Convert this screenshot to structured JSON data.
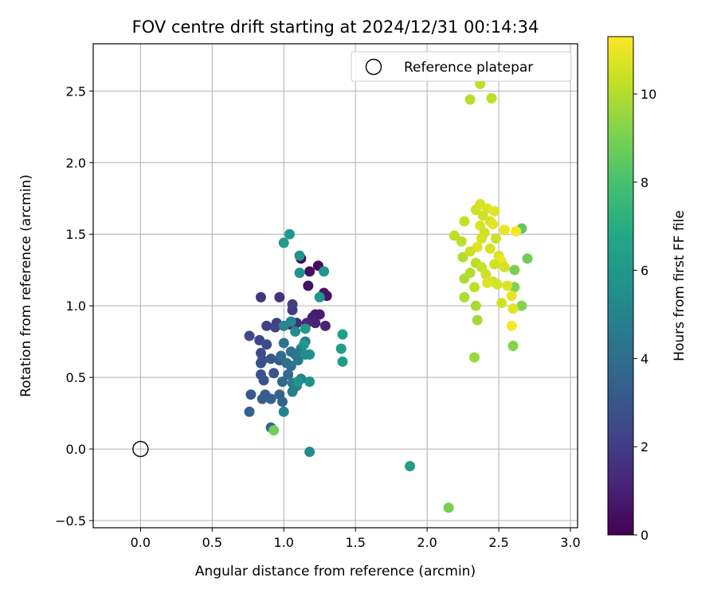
{
  "chart_data": {
    "type": "scatter",
    "title": "FOV centre drift starting at 2024/12/31 00:14:34",
    "xlabel": "Angular distance from reference (arcmin)",
    "ylabel": "Rotation from reference (arcmin)",
    "xlim": [
      -0.33,
      3.05
    ],
    "ylim": [
      -0.55,
      2.83
    ],
    "xticks": [
      "0.0",
      "0.5",
      "1.0",
      "1.5",
      "2.0",
      "2.5",
      "3.0"
    ],
    "xtick_values": [
      0,
      0.5,
      1.0,
      1.5,
      2.0,
      2.5,
      3.0
    ],
    "yticks": [
      "−0.5",
      "0.0",
      "0.5",
      "1.0",
      "1.5",
      "2.0",
      "2.5"
    ],
    "ytick_values": [
      -0.5,
      0,
      0.5,
      1.0,
      1.5,
      2.0,
      2.5
    ],
    "grid": true,
    "legend": {
      "position": "top-right",
      "label": "Reference platepar"
    },
    "reference_point": {
      "x": 0.0,
      "y": 0.0
    },
    "colorbar": {
      "label": "Hours from first FF file",
      "range": [
        0,
        11.3
      ],
      "ticks": [
        "0",
        "2",
        "4",
        "6",
        "8",
        "10"
      ],
      "tick_values": [
        0,
        2,
        4,
        6,
        8,
        10
      ],
      "colormap": "viridis"
    },
    "series": [
      {
        "points": [
          {
            "x": 1.12,
            "y": 1.33,
            "c": 0.2
          },
          {
            "x": 1.24,
            "y": 1.28,
            "c": 0.3
          },
          {
            "x": 1.18,
            "y": 1.24,
            "c": 0.4
          },
          {
            "x": 1.17,
            "y": 1.14,
            "c": 0.5
          },
          {
            "x": 1.28,
            "y": 1.09,
            "c": 0.6
          },
          {
            "x": 1.3,
            "y": 1.07,
            "c": 0.7
          },
          {
            "x": 1.22,
            "y": 0.94,
            "c": 0.8
          },
          {
            "x": 1.25,
            "y": 0.94,
            "c": 0.9
          },
          {
            "x": 1.2,
            "y": 0.92,
            "c": 1.0
          },
          {
            "x": 1.22,
            "y": 0.88,
            "c": 1.1
          },
          {
            "x": 1.29,
            "y": 0.86,
            "c": 1.2
          },
          {
            "x": 1.16,
            "y": 0.88,
            "c": 1.3
          },
          {
            "x": 1.09,
            "y": 0.88,
            "c": 1.4
          },
          {
            "x": 1.04,
            "y": 0.87,
            "c": 1.5
          },
          {
            "x": 0.97,
            "y": 1.06,
            "c": 1.6
          },
          {
            "x": 0.84,
            "y": 1.06,
            "c": 1.8
          },
          {
            "x": 1.06,
            "y": 0.97,
            "c": 1.9
          },
          {
            "x": 1.06,
            "y": 1.01,
            "c": 2.0
          },
          {
            "x": 0.95,
            "y": 0.88,
            "c": 2.1
          },
          {
            "x": 0.88,
            "y": 0.86,
            "c": 2.2
          },
          {
            "x": 0.94,
            "y": 0.85,
            "c": 2.3
          },
          {
            "x": 0.83,
            "y": 0.76,
            "c": 2.4
          },
          {
            "x": 0.76,
            "y": 0.79,
            "c": 2.5
          },
          {
            "x": 0.88,
            "y": 0.73,
            "c": 2.6
          },
          {
            "x": 0.84,
            "y": 0.67,
            "c": 2.6
          },
          {
            "x": 0.85,
            "y": 0.62,
            "c": 2.7
          },
          {
            "x": 0.84,
            "y": 0.6,
            "c": 2.8
          },
          {
            "x": 0.84,
            "y": 0.52,
            "c": 2.8
          },
          {
            "x": 0.86,
            "y": 0.48,
            "c": 2.9
          },
          {
            "x": 0.93,
            "y": 0.53,
            "c": 3.0
          },
          {
            "x": 0.97,
            "y": 0.62,
            "c": 3.0
          },
          {
            "x": 0.91,
            "y": 0.63,
            "c": 3.1
          },
          {
            "x": 0.77,
            "y": 0.38,
            "c": 3.2
          },
          {
            "x": 0.87,
            "y": 0.38,
            "c": 3.3
          },
          {
            "x": 0.85,
            "y": 0.35,
            "c": 3.3
          },
          {
            "x": 0.91,
            "y": 0.35,
            "c": 3.4
          },
          {
            "x": 0.76,
            "y": 0.26,
            "c": 3.5
          },
          {
            "x": 0.97,
            "y": 0.38,
            "c": 3.6
          },
          {
            "x": 0.99,
            "y": 0.33,
            "c": 3.7
          },
          {
            "x": 0.91,
            "y": 0.15,
            "c": 3.7
          },
          {
            "x": 0.99,
            "y": 0.47,
            "c": 3.8
          },
          {
            "x": 1.03,
            "y": 0.52,
            "c": 3.9
          },
          {
            "x": 1.05,
            "y": 0.58,
            "c": 4.0
          },
          {
            "x": 1.02,
            "y": 0.6,
            "c": 4.1
          },
          {
            "x": 0.98,
            "y": 0.65,
            "c": 4.1
          },
          {
            "x": 1.05,
            "y": 0.68,
            "c": 4.2
          },
          {
            "x": 1.0,
            "y": 0.74,
            "c": 4.3
          },
          {
            "x": 1.08,
            "y": 0.66,
            "c": 4.4
          },
          {
            "x": 1.1,
            "y": 0.62,
            "c": 4.5
          },
          {
            "x": 1.12,
            "y": 0.7,
            "c": 4.5
          },
          {
            "x": 1.15,
            "y": 0.75,
            "c": 4.6
          },
          {
            "x": 1.06,
            "y": 0.46,
            "c": 4.7
          },
          {
            "x": 1.06,
            "y": 0.4,
            "c": 4.8
          },
          {
            "x": 1.09,
            "y": 0.44,
            "c": 4.9
          },
          {
            "x": 1.12,
            "y": 0.49,
            "c": 5.0
          },
          {
            "x": 1.0,
            "y": 0.26,
            "c": 5.1
          },
          {
            "x": 1.0,
            "y": 0.86,
            "c": 5.2
          },
          {
            "x": 1.05,
            "y": 0.89,
            "c": 5.3
          },
          {
            "x": 1.08,
            "y": 0.82,
            "c": 5.4
          },
          {
            "x": 1.15,
            "y": 0.66,
            "c": 5.5
          },
          {
            "x": 1.18,
            "y": 0.66,
            "c": 5.6
          },
          {
            "x": 1.18,
            "y": 0.47,
            "c": 5.7
          },
          {
            "x": 1.1,
            "y": 0.47,
            "c": 5.8
          },
          {
            "x": 1.14,
            "y": 0.73,
            "c": 5.9
          },
          {
            "x": 1.11,
            "y": 1.23,
            "c": 5.7
          },
          {
            "x": 1.11,
            "y": 1.35,
            "c": 5.8
          },
          {
            "x": 1.25,
            "y": 1.06,
            "c": 5.9
          },
          {
            "x": 1.28,
            "y": 1.24,
            "c": 6.0
          },
          {
            "x": 1.04,
            "y": 1.5,
            "c": 6.0
          },
          {
            "x": 1.0,
            "y": 1.44,
            "c": 6.1
          },
          {
            "x": 1.18,
            "y": -0.02,
            "c": 5.4
          },
          {
            "x": 1.15,
            "y": 0.84,
            "c": 6.1
          },
          {
            "x": 1.4,
            "y": 0.7,
            "c": 6.2
          },
          {
            "x": 1.41,
            "y": 0.61,
            "c": 6.3
          },
          {
            "x": 1.41,
            "y": 0.8,
            "c": 6.4
          },
          {
            "x": 1.88,
            "y": -0.12,
            "c": 6.3
          },
          {
            "x": 0.93,
            "y": 0.13,
            "c": 8.8
          },
          {
            "x": 2.15,
            "y": -0.41,
            "c": 9.0
          },
          {
            "x": 2.66,
            "y": 1.54,
            "c": 8.5
          },
          {
            "x": 2.7,
            "y": 1.33,
            "c": 8.8
          },
          {
            "x": 2.61,
            "y": 1.25,
            "c": 9.0
          },
          {
            "x": 2.61,
            "y": 1.13,
            "c": 9.1
          },
          {
            "x": 2.66,
            "y": 1.0,
            "c": 9.2
          },
          {
            "x": 2.6,
            "y": 0.72,
            "c": 9.2
          },
          {
            "x": 2.33,
            "y": 0.64,
            "c": 9.6
          },
          {
            "x": 2.35,
            "y": 0.9,
            "c": 9.7
          },
          {
            "x": 2.34,
            "y": 1.0,
            "c": 9.8
          },
          {
            "x": 2.26,
            "y": 1.06,
            "c": 9.9
          },
          {
            "x": 2.26,
            "y": 1.19,
            "c": 9.9
          },
          {
            "x": 2.3,
            "y": 1.23,
            "c": 10.0
          },
          {
            "x": 2.34,
            "y": 1.3,
            "c": 10.1
          },
          {
            "x": 2.25,
            "y": 1.34,
            "c": 10.0
          },
          {
            "x": 2.24,
            "y": 1.45,
            "c": 10.1
          },
          {
            "x": 2.19,
            "y": 1.49,
            "c": 10.2
          },
          {
            "x": 2.26,
            "y": 1.59,
            "c": 10.3
          },
          {
            "x": 2.3,
            "y": 2.44,
            "c": 10.1
          },
          {
            "x": 2.37,
            "y": 2.55,
            "c": 10.2
          },
          {
            "x": 2.45,
            "y": 2.45,
            "c": 10.1
          },
          {
            "x": 2.34,
            "y": 1.67,
            "c": 10.4
          },
          {
            "x": 2.37,
            "y": 1.71,
            "c": 10.6
          },
          {
            "x": 2.42,
            "y": 1.68,
            "c": 10.7
          },
          {
            "x": 2.47,
            "y": 1.66,
            "c": 10.8
          },
          {
            "x": 2.39,
            "y": 1.63,
            "c": 10.5
          },
          {
            "x": 2.44,
            "y": 1.59,
            "c": 10.6
          },
          {
            "x": 2.37,
            "y": 1.56,
            "c": 10.7
          },
          {
            "x": 2.46,
            "y": 1.57,
            "c": 10.9
          },
          {
            "x": 2.54,
            "y": 1.53,
            "c": 11.0
          },
          {
            "x": 2.48,
            "y": 1.47,
            "c": 10.4
          },
          {
            "x": 2.4,
            "y": 1.51,
            "c": 10.5
          },
          {
            "x": 2.38,
            "y": 1.47,
            "c": 10.6
          },
          {
            "x": 2.35,
            "y": 1.41,
            "c": 10.8
          },
          {
            "x": 2.3,
            "y": 1.38,
            "c": 10.4
          },
          {
            "x": 2.44,
            "y": 1.4,
            "c": 10.6
          },
          {
            "x": 2.5,
            "y": 1.35,
            "c": 10.7
          },
          {
            "x": 2.52,
            "y": 1.31,
            "c": 11.0
          },
          {
            "x": 2.47,
            "y": 1.29,
            "c": 10.5
          },
          {
            "x": 2.38,
            "y": 1.27,
            "c": 10.3
          },
          {
            "x": 2.41,
            "y": 1.22,
            "c": 10.4
          },
          {
            "x": 2.46,
            "y": 1.17,
            "c": 10.5
          },
          {
            "x": 2.49,
            "y": 1.15,
            "c": 10.6
          },
          {
            "x": 2.42,
            "y": 1.16,
            "c": 10.7
          },
          {
            "x": 2.33,
            "y": 1.13,
            "c": 10.2
          },
          {
            "x": 2.54,
            "y": 1.27,
            "c": 10.6
          },
          {
            "x": 2.56,
            "y": 1.14,
            "c": 10.7
          },
          {
            "x": 2.59,
            "y": 1.07,
            "c": 10.9
          },
          {
            "x": 2.6,
            "y": 0.98,
            "c": 10.8
          },
          {
            "x": 2.52,
            "y": 1.02,
            "c": 10.5
          },
          {
            "x": 2.59,
            "y": 0.86,
            "c": 11.2
          },
          {
            "x": 2.62,
            "y": 1.52,
            "c": 11.2
          }
        ]
      }
    ]
  }
}
